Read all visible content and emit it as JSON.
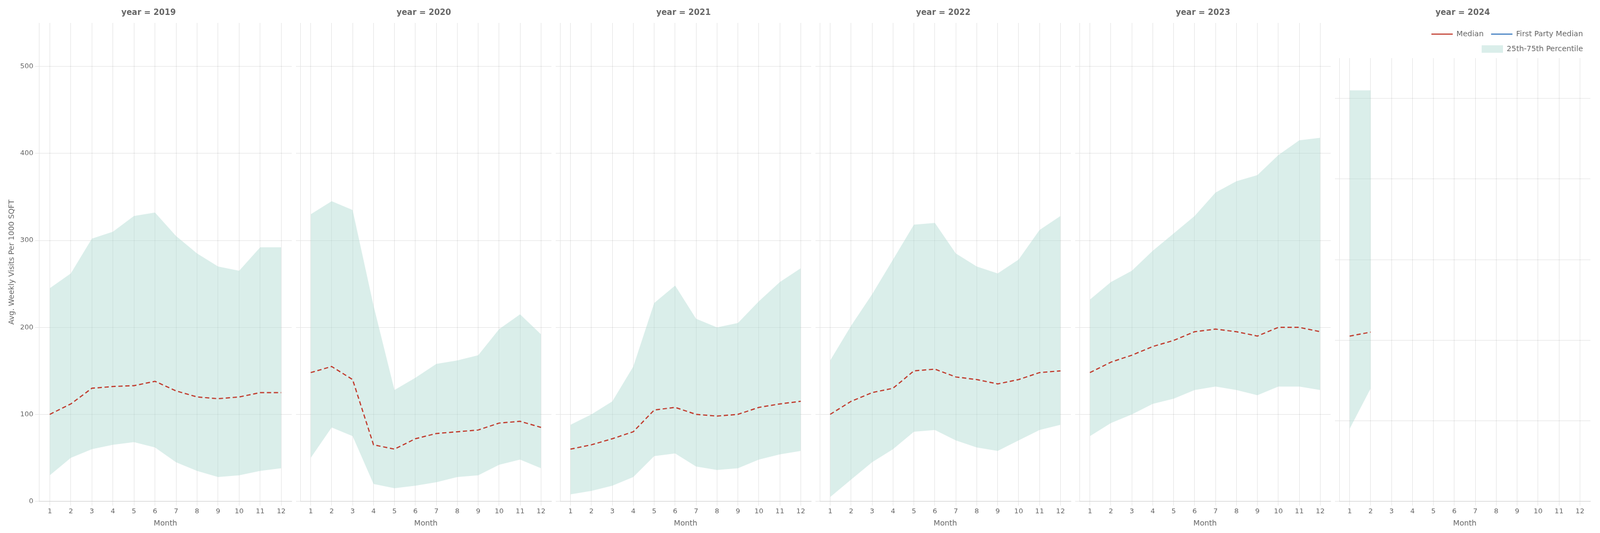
{
  "chart_data": [
    {
      "type": "line",
      "title": "year = 2019",
      "xlabel": "Month",
      "ylabel": "Avg. Weekly Visits Per 1000 SQFT",
      "x": [
        1,
        2,
        3,
        4,
        5,
        6,
        7,
        8,
        9,
        10,
        11,
        12
      ],
      "xlim": [
        0.5,
        12.5
      ],
      "xticks": [
        1,
        2,
        3,
        4,
        5,
        6,
        7,
        8,
        9,
        10,
        11,
        12
      ],
      "ylim": [
        0,
        550
      ],
      "yticks": [
        0,
        100,
        200,
        300,
        400,
        500
      ],
      "grid": true,
      "legend": false,
      "series": [
        {
          "name": "Median",
          "color": "#c0392b",
          "line_style": "dashed",
          "values": [
            100,
            112,
            130,
            132,
            133,
            138,
            127,
            120,
            118,
            120,
            125,
            125
          ]
        },
        {
          "name": "25th-75th Percentile",
          "type": "band",
          "color": "#aed9d0",
          "lower": [
            30,
            50,
            60,
            65,
            68,
            62,
            45,
            35,
            28,
            30,
            35,
            38
          ],
          "upper": [
            245,
            262,
            302,
            310,
            328,
            332,
            305,
            285,
            270,
            265,
            292,
            292
          ]
        }
      ]
    },
    {
      "type": "line",
      "title": "year = 2020",
      "xlabel": "Month",
      "x": [
        1,
        2,
        3,
        4,
        5,
        6,
        7,
        8,
        9,
        10,
        11,
        12
      ],
      "xlim": [
        0.5,
        12.5
      ],
      "xticks": [
        1,
        2,
        3,
        4,
        5,
        6,
        7,
        8,
        9,
        10,
        11,
        12
      ],
      "ylim": [
        0,
        550
      ],
      "yticks": [
        0,
        100,
        200,
        300,
        400,
        500
      ],
      "grid": true,
      "legend": false,
      "tick_labels": "x",
      "series": [
        {
          "name": "Median",
          "color": "#c0392b",
          "line_style": "dashed",
          "values": [
            148,
            155,
            140,
            65,
            60,
            72,
            78,
            80,
            82,
            90,
            92,
            85
          ]
        },
        {
          "name": "25th-75th Percentile",
          "type": "band",
          "color": "#aed9d0",
          "lower": [
            50,
            85,
            75,
            20,
            15,
            18,
            22,
            28,
            30,
            42,
            48,
            38
          ],
          "upper": [
            330,
            345,
            335,
            225,
            128,
            142,
            158,
            162,
            168,
            198,
            215,
            192
          ]
        }
      ]
    },
    {
      "type": "line",
      "title": "year = 2021",
      "xlabel": "Month",
      "x": [
        1,
        2,
        3,
        4,
        5,
        6,
        7,
        8,
        9,
        10,
        11,
        12
      ],
      "xlim": [
        0.5,
        12.5
      ],
      "xticks": [
        1,
        2,
        3,
        4,
        5,
        6,
        7,
        8,
        9,
        10,
        11,
        12
      ],
      "ylim": [
        0,
        550
      ],
      "yticks": [
        0,
        100,
        200,
        300,
        400,
        500
      ],
      "grid": true,
      "legend": false,
      "tick_labels": "x",
      "series": [
        {
          "name": "Median",
          "color": "#c0392b",
          "line_style": "dashed",
          "values": [
            60,
            65,
            72,
            80,
            105,
            108,
            100,
            98,
            100,
            108,
            112,
            115
          ]
        },
        {
          "name": "25th-75th Percentile",
          "type": "band",
          "color": "#aed9d0",
          "lower": [
            8,
            12,
            18,
            28,
            52,
            55,
            40,
            36,
            38,
            48,
            54,
            58
          ],
          "upper": [
            88,
            100,
            115,
            155,
            228,
            248,
            210,
            200,
            205,
            230,
            252,
            268
          ]
        }
      ]
    },
    {
      "type": "line",
      "title": "year = 2022",
      "xlabel": "Month",
      "x": [
        1,
        2,
        3,
        4,
        5,
        6,
        7,
        8,
        9,
        10,
        11,
        12
      ],
      "xlim": [
        0.5,
        12.5
      ],
      "xticks": [
        1,
        2,
        3,
        4,
        5,
        6,
        7,
        8,
        9,
        10,
        11,
        12
      ],
      "ylim": [
        0,
        550
      ],
      "yticks": [
        0,
        100,
        200,
        300,
        400,
        500
      ],
      "grid": true,
      "legend": false,
      "tick_labels": "x",
      "series": [
        {
          "name": "Median",
          "color": "#c0392b",
          "line_style": "dashed",
          "values": [
            100,
            115,
            125,
            130,
            150,
            152,
            143,
            140,
            135,
            140,
            148,
            150
          ]
        },
        {
          "name": "25th-75th Percentile",
          "type": "band",
          "color": "#aed9d0",
          "lower": [
            5,
            25,
            45,
            60,
            80,
            82,
            70,
            62,
            58,
            70,
            82,
            88
          ],
          "upper": [
            162,
            202,
            238,
            278,
            318,
            320,
            285,
            270,
            262,
            278,
            312,
            328
          ]
        }
      ]
    },
    {
      "type": "line",
      "title": "year = 2023",
      "xlabel": "Month",
      "x": [
        1,
        2,
        3,
        4,
        5,
        6,
        7,
        8,
        9,
        10,
        11,
        12
      ],
      "xlim": [
        0.5,
        12.5
      ],
      "xticks": [
        1,
        2,
        3,
        4,
        5,
        6,
        7,
        8,
        9,
        10,
        11,
        12
      ],
      "ylim": [
        0,
        550
      ],
      "yticks": [
        0,
        100,
        200,
        300,
        400,
        500
      ],
      "grid": true,
      "legend": false,
      "tick_labels": "x",
      "series": [
        {
          "name": "Median",
          "color": "#c0392b",
          "line_style": "dashed",
          "values": [
            148,
            160,
            168,
            178,
            185,
            195,
            198,
            195,
            190,
            200,
            200,
            195
          ]
        },
        {
          "name": "25th-75th Percentile",
          "type": "band",
          "color": "#aed9d0",
          "lower": [
            75,
            90,
            100,
            112,
            118,
            128,
            132,
            128,
            122,
            132,
            132,
            128
          ],
          "upper": [
            232,
            252,
            265,
            288,
            308,
            328,
            355,
            368,
            375,
            398,
            415,
            418
          ]
        }
      ]
    },
    {
      "type": "line",
      "title": "year = 2024",
      "xlabel": "Month",
      "x": [
        1,
        2,
        3,
        4,
        5,
        6,
        7,
        8,
        9,
        10,
        11,
        12
      ],
      "xlim": [
        0.5,
        12.5
      ],
      "xticks": [
        1,
        2,
        3,
        4,
        5,
        6,
        7,
        8,
        9,
        10,
        11,
        12
      ],
      "ylim": [
        0,
        550
      ],
      "yticks": [
        0,
        100,
        200,
        300,
        400,
        500
      ],
      "grid": true,
      "legend": "upper right",
      "tick_labels": "x",
      "series": [
        {
          "name": "Median",
          "color": "#c0392b",
          "line_style": "dashed",
          "values": [
            205,
            210,
            null,
            null,
            null,
            null,
            null,
            null,
            null,
            null,
            null,
            null
          ]
        },
        {
          "name": "First Party Median",
          "color": "#3a7abf",
          "line_style": "dashed",
          "values": [
            null,
            null,
            null,
            null,
            null,
            null,
            null,
            null,
            null,
            null,
            null,
            null
          ]
        },
        {
          "name": "25th-75th Percentile",
          "type": "band",
          "color": "#aed9d0",
          "lower": [
            90,
            140,
            null,
            null,
            null,
            null,
            null,
            null,
            null,
            null,
            null,
            null
          ],
          "upper": [
            510,
            510,
            null,
            null,
            null,
            null,
            null,
            null,
            null,
            null,
            null,
            null
          ]
        }
      ]
    }
  ]
}
